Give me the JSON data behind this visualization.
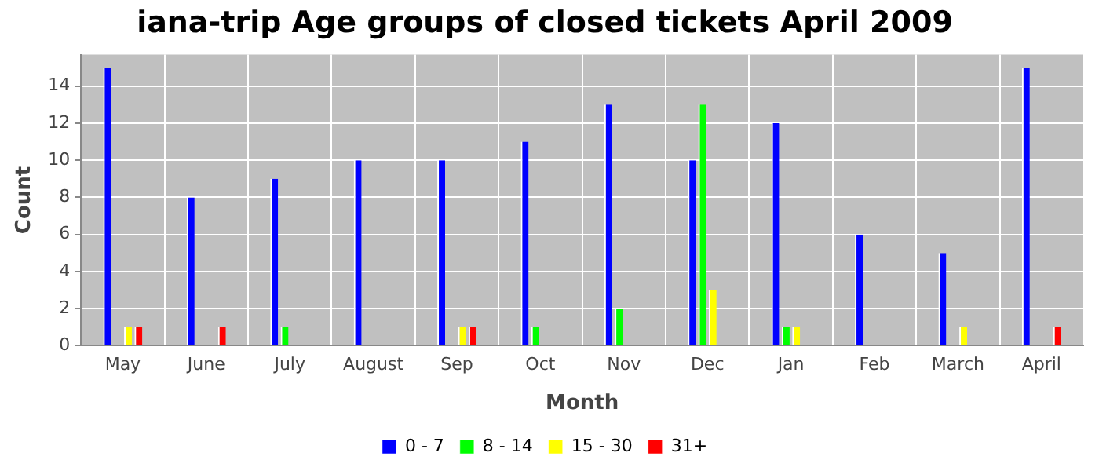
{
  "chart_data": {
    "type": "bar",
    "title": "iana-trip Age groups of closed tickets April 2009",
    "xlabel": "Month",
    "ylabel": "Count",
    "categories": [
      "May",
      "June",
      "July",
      "August",
      "Sep",
      "Oct",
      "Nov",
      "Dec",
      "Jan",
      "Feb",
      "March",
      "April"
    ],
    "series": [
      {
        "name": "0 - 7",
        "color": "#0000ff",
        "values": [
          15,
          8,
          9,
          10,
          10,
          11,
          13,
          10,
          12,
          6,
          5,
          15
        ]
      },
      {
        "name": "8 - 14",
        "color": "#00ff00",
        "values": [
          0,
          0,
          1,
          0,
          0,
          1,
          2,
          13,
          1,
          0,
          0,
          0
        ]
      },
      {
        "name": "15 - 30",
        "color": "#ffff00",
        "values": [
          1,
          0,
          0,
          0,
          1,
          0,
          0,
          3,
          1,
          0,
          1,
          0
        ]
      },
      {
        "name": "31+",
        "color": "#ff0000",
        "values": [
          1,
          1,
          0,
          0,
          1,
          0,
          0,
          0,
          0,
          0,
          0,
          1
        ]
      }
    ],
    "ylim": [
      0,
      15.7
    ],
    "yticks": [
      0,
      2,
      4,
      6,
      8,
      10,
      12,
      14
    ],
    "grid": true,
    "legend": "bottom"
  }
}
